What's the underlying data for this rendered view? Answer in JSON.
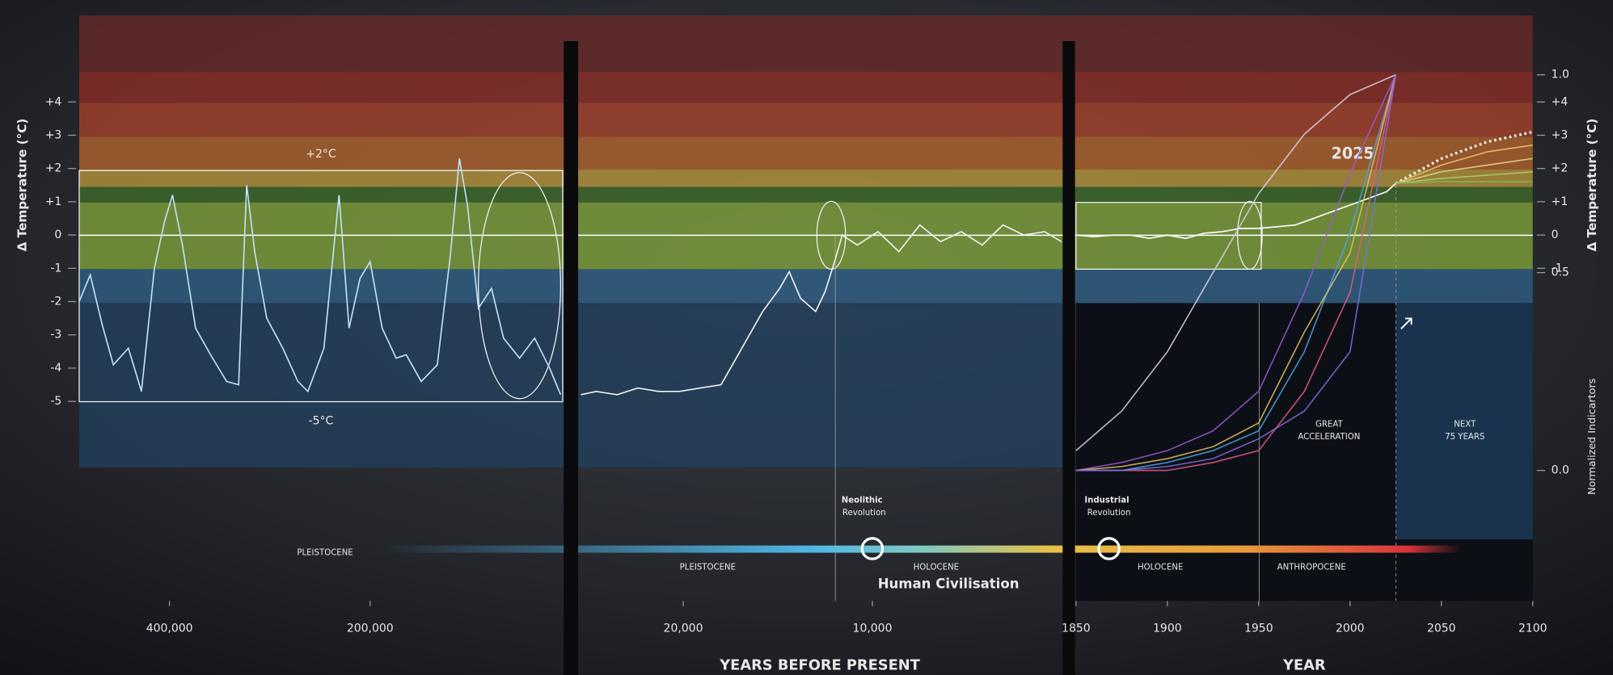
{
  "chart_data": [
    {
      "type": "line",
      "ylabel": "Δ Temperature (°C)",
      "xlim": [
        490000,
        8000
      ],
      "ylim": [
        -11,
        6.6
      ],
      "xticks": [
        {
          "value": 400000,
          "label": "400,000"
        },
        {
          "value": 200000,
          "label": "200,000"
        }
      ],
      "yticks": [
        {
          "value": 4,
          "label": "+4"
        },
        {
          "value": 3,
          "label": "+3"
        },
        {
          "value": 2,
          "label": "+2"
        },
        {
          "value": 1,
          "label": "+1"
        },
        0,
        -1,
        -2,
        -3,
        -4,
        -5
      ],
      "x": [
        490000,
        479000,
        467000,
        456000,
        441000,
        428000,
        415000,
        405000,
        397000,
        387000,
        374000,
        359000,
        343000,
        331000,
        323000,
        315000,
        303000,
        287000,
        272000,
        262000,
        246000,
        231000,
        221000,
        210000,
        200000,
        188000,
        174000,
        164000,
        149000,
        133000,
        120000,
        111000,
        103000,
        92000,
        79000,
        67000,
        51000,
        36000,
        21000,
        10000
      ],
      "series": [
        {
          "color": "#bfe0f5",
          "values": [
            -2.0,
            -1.2,
            -2.7,
            -3.9,
            -3.4,
            -4.7,
            -1.0,
            0.4,
            1.2,
            -0.3,
            -2.8,
            -3.6,
            -4.4,
            -4.5,
            1.5,
            -0.5,
            -2.5,
            -3.4,
            -4.4,
            -4.7,
            -3.4,
            1.2,
            -2.8,
            -1.3,
            -0.8,
            -2.8,
            -3.7,
            -3.6,
            -4.4,
            -3.9,
            -0.6,
            2.3,
            0.9,
            -2.2,
            -1.6,
            -3.1,
            -3.7,
            -3.1,
            -4.0,
            -4.8
          ]
        }
      ],
      "annotations": [
        "+2°C",
        "-5°C",
        "PLEISTOCENE"
      ]
    },
    {
      "type": "line",
      "xlabel": "YEARS BEFORE PRESENT",
      "xlim": [
        25500,
        0
      ],
      "ylim": [
        -11,
        6.6
      ],
      "xticks": [
        {
          "value": 20000,
          "label": "20,000"
        },
        {
          "value": 10000,
          "label": "10,000"
        }
      ],
      "x": [
        25400,
        24600,
        23500,
        22400,
        21300,
        20200,
        19100,
        18000,
        17400,
        16600,
        15800,
        14900,
        14400,
        13800,
        13000,
        12500,
        12000,
        11600,
        10800,
        9700,
        8600,
        7500,
        6400,
        5300,
        4200,
        3100,
        2000,
        900,
        0
      ],
      "series": [
        {
          "color": "#f0f0f0",
          "values": [
            -4.8,
            -4.7,
            -4.8,
            -4.6,
            -4.7,
            -4.7,
            -4.6,
            -4.5,
            -3.9,
            -3.1,
            -2.3,
            -1.6,
            -1.1,
            -1.9,
            -2.3,
            -1.7,
            -0.8,
            0.0,
            -0.3,
            0.1,
            -0.5,
            0.3,
            -0.2,
            0.1,
            -0.3,
            0.3,
            0.0,
            0.1,
            -0.2
          ]
        }
      ],
      "annotations": [
        "PLEISTOCENE",
        "Neolithic",
        "Revolution",
        "HOLOCENE",
        "Human Civilisation"
      ]
    },
    {
      "type": "line",
      "xlabel": "YEAR",
      "ylabel": "Δ Temperature (°C)",
      "xlim": [
        1850,
        2100
      ],
      "ylim": [
        -11,
        6.6
      ],
      "xticks": [
        1850,
        1900,
        1950,
        2000,
        2050,
        2100
      ],
      "yticks": [
        {
          "value": 4,
          "label": "+4"
        },
        {
          "value": 3,
          "label": "+3"
        },
        {
          "value": 2,
          "label": "+2"
        },
        {
          "value": 1,
          "label": "+1"
        },
        0,
        -1
      ],
      "series": [
        {
          "color": "#ffffff",
          "x": [
            1850,
            1860,
            1870,
            1880,
            1890,
            1900,
            1910,
            1920,
            1930,
            1940,
            1950,
            1960,
            1970,
            1980,
            1990,
            2000,
            2010,
            2020,
            2025
          ],
          "values": [
            0,
            -0.05,
            0,
            0,
            -0.1,
            0,
            -0.1,
            0.05,
            0.1,
            0.2,
            0.2,
            0.25,
            0.3,
            0.5,
            0.7,
            0.9,
            1.1,
            1.3,
            1.55
          ]
        },
        {
          "color": "#ffffff",
          "x": [
            2025,
            2050,
            2075,
            2100
          ],
          "values": [
            1.55,
            2.3,
            2.8,
            3.1
          ]
        },
        {
          "color": "#e6b26a",
          "x": [
            2025,
            2050,
            2075,
            2100
          ],
          "values": [
            1.55,
            2.1,
            2.5,
            2.7
          ]
        },
        {
          "color": "#d6c47a",
          "x": [
            2025,
            2050,
            2075,
            2100
          ],
          "values": [
            1.55,
            1.9,
            2.1,
            2.3
          ]
        },
        {
          "color": "#a9c46a",
          "x": [
            2025,
            2050,
            2075,
            2100
          ],
          "values": [
            1.55,
            1.7,
            1.8,
            1.9
          ]
        },
        {
          "color": "#7fae5a",
          "x": [
            2025,
            2050,
            2075,
            2100
          ],
          "values": [
            1.55,
            1.6,
            1.6,
            1.6
          ]
        }
      ],
      "annotations": [
        "2025",
        "Industrial",
        "Revolution",
        "HOLOCENE",
        "ANTHROPOCENE"
      ]
    },
    {
      "type": "line",
      "ylabel": "Normalized Indicartors",
      "xlim": [
        1850,
        2100
      ],
      "ylim": [
        -0.33,
        1.15
      ],
      "yticks": [
        {
          "value": 1.0,
          "label": "1.0"
        },
        0.5,
        {
          "value": 0.0,
          "label": "0.0"
        }
      ],
      "x": [
        1850,
        1875,
        1900,
        1925,
        1950,
        1975,
        2000,
        2025
      ],
      "series": [
        {
          "color": "#d9d0e8",
          "values": [
            0.05,
            0.15,
            0.3,
            0.5,
            0.7,
            0.85,
            0.95,
            1.0
          ]
        },
        {
          "color": "#9b59d0",
          "values": [
            0.0,
            0.02,
            0.05,
            0.1,
            0.2,
            0.45,
            0.75,
            1.0
          ]
        },
        {
          "color": "#4fa3e0",
          "values": [
            0.0,
            0.0,
            0.02,
            0.05,
            0.1,
            0.3,
            0.6,
            1.0
          ]
        },
        {
          "color": "#e0c060",
          "values": [
            0.0,
            0.01,
            0.03,
            0.06,
            0.12,
            0.35,
            0.55,
            1.0
          ]
        },
        {
          "color": "#e05a8a",
          "values": [
            0.0,
            0.0,
            0.0,
            0.02,
            0.05,
            0.2,
            0.45,
            1.0
          ]
        },
        {
          "color": "#7b6fe0",
          "values": [
            0.0,
            0.0,
            0.01,
            0.03,
            0.08,
            0.15,
            0.3,
            1.0
          ]
        }
      ],
      "annotations": [
        "GREAT",
        "ACCELERATION",
        "NEXT",
        "75 YEARS"
      ]
    }
  ]
}
